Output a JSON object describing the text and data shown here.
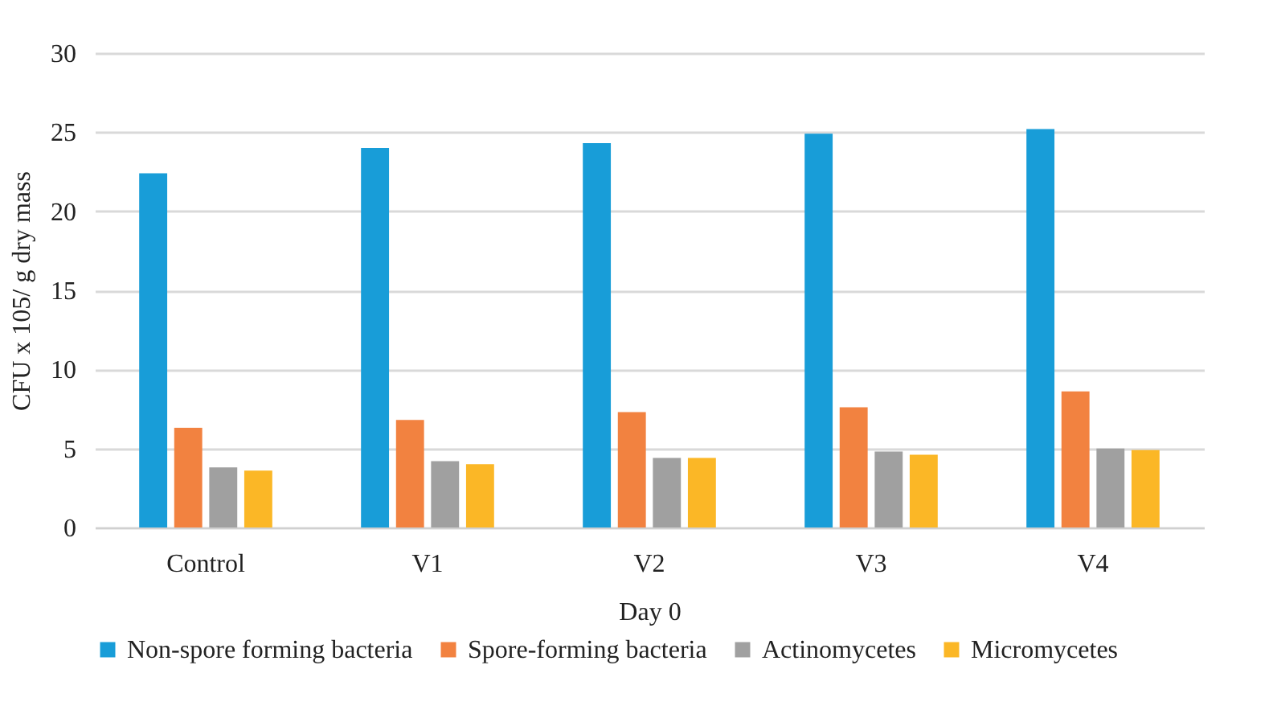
{
  "chart_data": {
    "type": "bar",
    "xlabel": "Day 0",
    "ylabel": "CFU x 105/ g dry mass",
    "categories": [
      "Control",
      "V1",
      "V2",
      "V3",
      "V4"
    ],
    "series": [
      {
        "name": "Non-spore forming bacteria",
        "color": "#189dd8",
        "values": [
          22.4,
          24.0,
          24.3,
          24.9,
          25.2
        ]
      },
      {
        "name": "Spore-forming bacteria",
        "color": "#f28240",
        "values": [
          6.3,
          6.8,
          7.3,
          7.6,
          8.6
        ]
      },
      {
        "name": "Actinomycetes",
        "color": "#a0a0a0",
        "values": [
          3.8,
          4.2,
          4.4,
          4.8,
          5.0
        ]
      },
      {
        "name": "Micromycetes",
        "color": "#fbb726",
        "values": [
          3.6,
          4.0,
          4.4,
          4.6,
          4.9
        ]
      }
    ],
    "ylim": [
      0,
      30
    ],
    "yticks": [
      0,
      5,
      10,
      15,
      20,
      25,
      30
    ],
    "grid": "y",
    "legend": "bottom"
  }
}
